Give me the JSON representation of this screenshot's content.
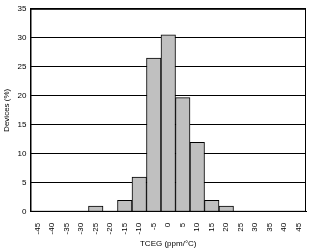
{
  "chart_data": {
    "type": "bar",
    "x_label": "TCEG (ppm/°C)",
    "y_label": "Devices (%)",
    "categories": [
      "-45",
      "-40",
      "-35",
      "-30",
      "-25",
      "-20",
      "-15",
      "-10",
      "-5",
      "0",
      "5",
      "10",
      "15",
      "20",
      "25",
      "30",
      "35",
      "40",
      "45"
    ],
    "values": [
      0,
      0,
      0,
      0,
      1,
      0,
      2,
      6,
      26.5,
      30.5,
      19.7,
      12,
      2,
      1,
      0,
      0,
      0,
      0,
      0
    ],
    "color": "#c0c0c0",
    "ylim": [
      0,
      35
    ],
    "yticks": [
      0,
      5,
      10,
      15,
      20,
      25,
      30,
      35
    ],
    "grid": true
  }
}
